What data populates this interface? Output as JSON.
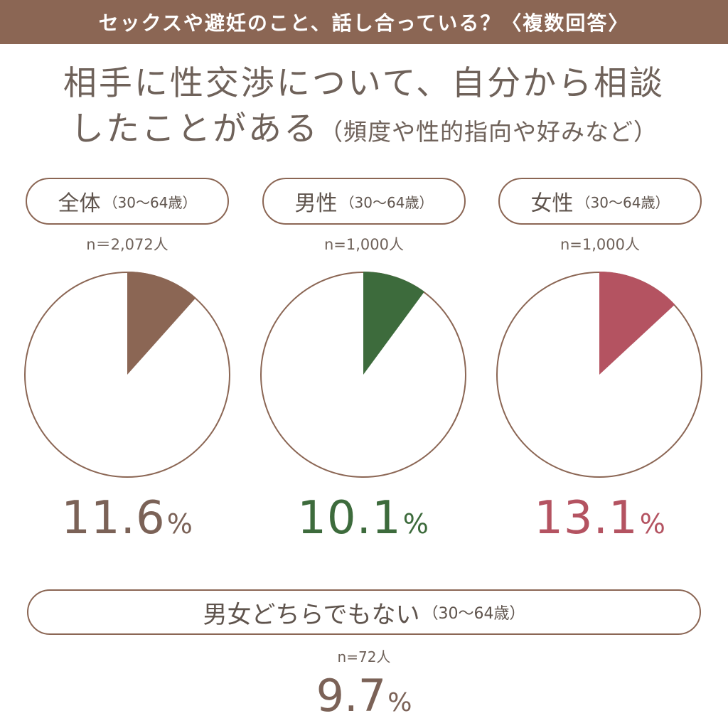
{
  "header": {
    "title": "セックスや避妊のこと、話し合っている？〈複数回答〉"
  },
  "question": {
    "line1": "相手に性交渉について、自分から相談",
    "line2": "したことがある",
    "note": "（頻度や性的指向や好みなど）"
  },
  "colors": {
    "header_bg": "#8b6654",
    "outline": "#8b6654",
    "overall": "#8b6654",
    "male": "#3d6b3c",
    "female": "#b45361"
  },
  "groups": [
    {
      "label": "全体",
      "age": "（30〜64歳）",
      "n": "n＝2,072人",
      "value": "11.6",
      "unit": "%"
    },
    {
      "label": "男性",
      "age": "（30〜64歳）",
      "n": "n=1,000人",
      "value": "10.1",
      "unit": "%"
    },
    {
      "label": "女性",
      "age": "（30〜64歳）",
      "n": "n=1,000人",
      "value": "13.1",
      "unit": "%"
    }
  ],
  "other": {
    "label": "男女どちらでもない",
    "age": "（30〜64歳）",
    "n": "n=72人",
    "value": "9.7",
    "unit": "%"
  },
  "chart_data": {
    "type": "pie",
    "title": "相手に性交渉について、自分から相談したことがある（頻度や性的指向や好みなど）",
    "series": [
      {
        "name": "全体",
        "value": 11.6
      },
      {
        "name": "男性",
        "value": 10.1
      },
      {
        "name": "女性",
        "value": 13.1
      },
      {
        "name": "男女どちらでもない",
        "value": 9.7
      }
    ]
  }
}
